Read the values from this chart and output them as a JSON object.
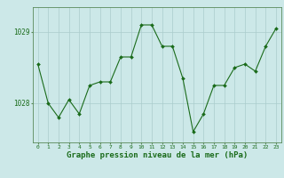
{
  "x": [
    0,
    1,
    2,
    3,
    4,
    5,
    6,
    7,
    8,
    9,
    10,
    11,
    12,
    13,
    14,
    15,
    16,
    17,
    18,
    19,
    20,
    21,
    22,
    23
  ],
  "y": [
    1028.55,
    1028.0,
    1027.8,
    1028.05,
    1027.85,
    1028.25,
    1028.3,
    1028.3,
    1028.65,
    1028.65,
    1029.1,
    1029.1,
    1028.8,
    1028.8,
    1028.35,
    1027.6,
    1027.85,
    1028.25,
    1028.25,
    1028.5,
    1028.55,
    1028.45,
    1028.8,
    1029.05
  ],
  "line_color": "#1a6b1a",
  "marker_color": "#1a6b1a",
  "bg_color": "#cce8e8",
  "grid_color": "#aacccc",
  "xlabel": "Graphe pression niveau de la mer (hPa)",
  "xlabel_fontsize": 6.5,
  "yticks": [
    1028,
    1029
  ],
  "ylim": [
    1027.45,
    1029.35
  ],
  "xlim": [
    -0.5,
    23.5
  ],
  "tick_label_color": "#1a6b1a",
  "spine_color": "#5a8a5a",
  "tick_fontsize": 4.5,
  "ytick_fontsize": 5.5
}
